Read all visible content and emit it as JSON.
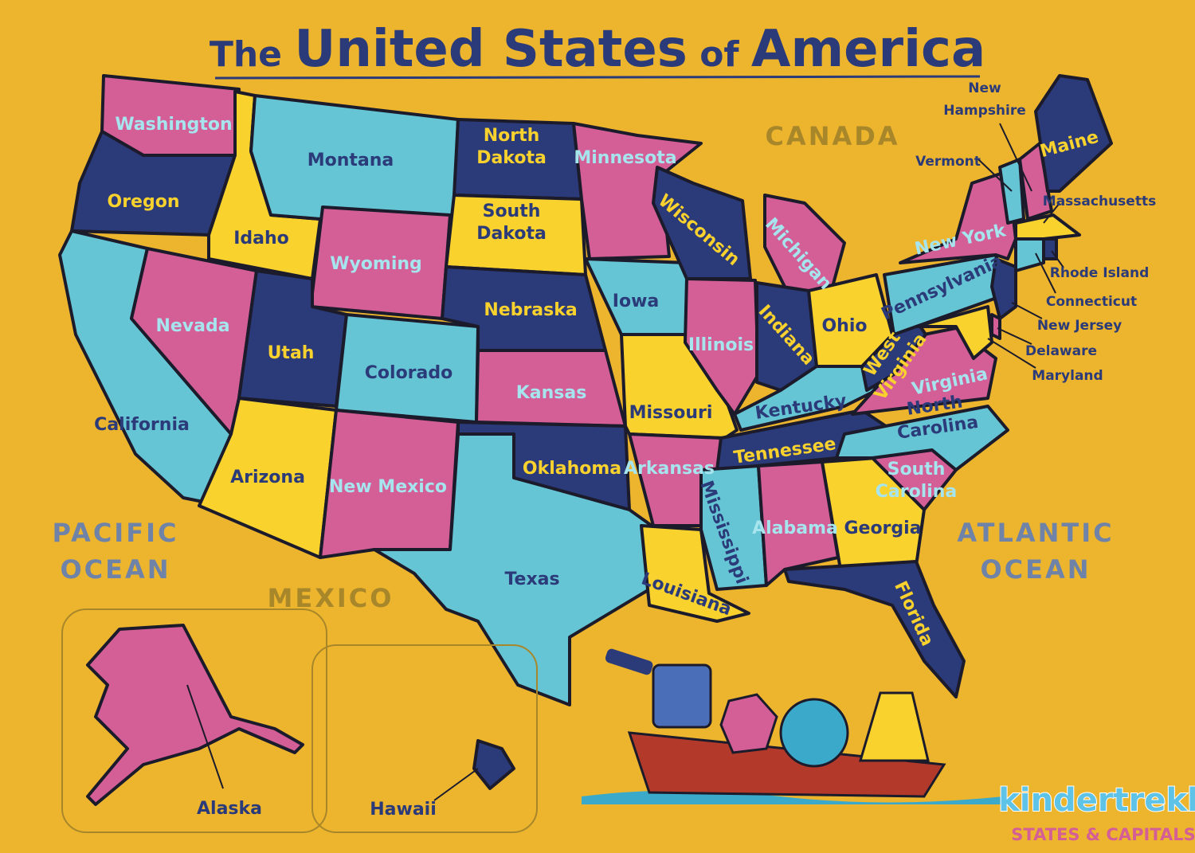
{
  "title": {
    "pre": "The",
    "main1": "United States",
    "mid": "of",
    "main2": "America"
  },
  "colors": {
    "background": "#EDB52E",
    "pink": "#D45E96",
    "navy": "#2B3A78",
    "cyan": "#66C5D4",
    "yellow": "#F9D22E",
    "title": "#2B3A78"
  },
  "regions": {
    "canada": "CANADA",
    "mexico": "MEXICO",
    "pacific": [
      "PACIFIC",
      "OCEAN"
    ],
    "atlantic": [
      "ATLANTIC",
      "OCEAN"
    ]
  },
  "states": [
    {
      "name": [
        "Washington"
      ],
      "fill": "pink"
    },
    {
      "name": [
        "Oregon"
      ],
      "fill": "navy"
    },
    {
      "name": [
        "California"
      ],
      "fill": "cyan"
    },
    {
      "name": [
        "Nevada"
      ],
      "fill": "pink"
    },
    {
      "name": [
        "Idaho"
      ],
      "fill": "yellow"
    },
    {
      "name": [
        "Montana"
      ],
      "fill": "cyan"
    },
    {
      "name": [
        "Wyoming"
      ],
      "fill": "pink"
    },
    {
      "name": [
        "Utah"
      ],
      "fill": "navy"
    },
    {
      "name": [
        "Colorado"
      ],
      "fill": "cyan"
    },
    {
      "name": [
        "Arizona"
      ],
      "fill": "yellow"
    },
    {
      "name": [
        "New Mexico"
      ],
      "fill": "pink"
    },
    {
      "name": [
        "North",
        "Dakota"
      ],
      "fill": "navy"
    },
    {
      "name": [
        "South",
        "Dakota"
      ],
      "fill": "yellow"
    },
    {
      "name": [
        "Nebraska"
      ],
      "fill": "navy"
    },
    {
      "name": [
        "Kansas"
      ],
      "fill": "pink"
    },
    {
      "name": [
        "Oklahoma"
      ],
      "fill": "navy"
    },
    {
      "name": [
        "Texas"
      ],
      "fill": "cyan"
    },
    {
      "name": [
        "Minnesota"
      ],
      "fill": "pink"
    },
    {
      "name": [
        "Iowa"
      ],
      "fill": "cyan"
    },
    {
      "name": [
        "Missouri"
      ],
      "fill": "yellow"
    },
    {
      "name": [
        "Arkansas"
      ],
      "fill": "pink"
    },
    {
      "name": [
        "Louisiana"
      ],
      "fill": "yellow"
    },
    {
      "name": [
        "Wisconsin"
      ],
      "fill": "navy"
    },
    {
      "name": [
        "Illinois"
      ],
      "fill": "pink"
    },
    {
      "name": [
        "Michigan"
      ],
      "fill": "pink"
    },
    {
      "name": [
        "Indiana"
      ],
      "fill": "navy"
    },
    {
      "name": [
        "Ohio"
      ],
      "fill": "yellow"
    },
    {
      "name": [
        "Kentucky"
      ],
      "fill": "cyan"
    },
    {
      "name": [
        "Tennessee"
      ],
      "fill": "navy"
    },
    {
      "name": [
        "Mississippi"
      ],
      "fill": "cyan"
    },
    {
      "name": [
        "Alabama"
      ],
      "fill": "pink"
    },
    {
      "name": [
        "Georgia"
      ],
      "fill": "yellow"
    },
    {
      "name": [
        "Florida"
      ],
      "fill": "navy"
    },
    {
      "name": [
        "South",
        "Carolina"
      ],
      "fill": "pink"
    },
    {
      "name": [
        "North",
        "Carolina"
      ],
      "fill": "cyan"
    },
    {
      "name": [
        "Virginia"
      ],
      "fill": "pink"
    },
    {
      "name": [
        "West",
        "Virginia"
      ],
      "fill": "navy"
    },
    {
      "name": [
        "Pennsylvania"
      ],
      "fill": "cyan"
    },
    {
      "name": [
        "New York"
      ],
      "fill": "pink"
    },
    {
      "name": [
        "Vermont"
      ],
      "fill": "cyan"
    },
    {
      "name": [
        "New",
        "Hampshire"
      ],
      "fill": "pink"
    },
    {
      "name": [
        "Maine"
      ],
      "fill": "navy"
    },
    {
      "name": [
        "Massachusetts"
      ],
      "fill": "yellow"
    },
    {
      "name": [
        "Connecticut"
      ],
      "fill": "cyan"
    },
    {
      "name": [
        "Rhode Island"
      ],
      "fill": "navy"
    },
    {
      "name": [
        "New Jersey"
      ],
      "fill": "navy"
    },
    {
      "name": [
        "Delaware"
      ],
      "fill": "pink"
    },
    {
      "name": [
        "Maryland"
      ],
      "fill": "yellow"
    },
    {
      "name": [
        "Alaska"
      ],
      "fill": "pink"
    },
    {
      "name": [
        "Hawaii"
      ],
      "fill": "navy"
    }
  ],
  "logo": {
    "brand": "kindertrekk",
    "tagline": "STATES & CAPITALS"
  }
}
